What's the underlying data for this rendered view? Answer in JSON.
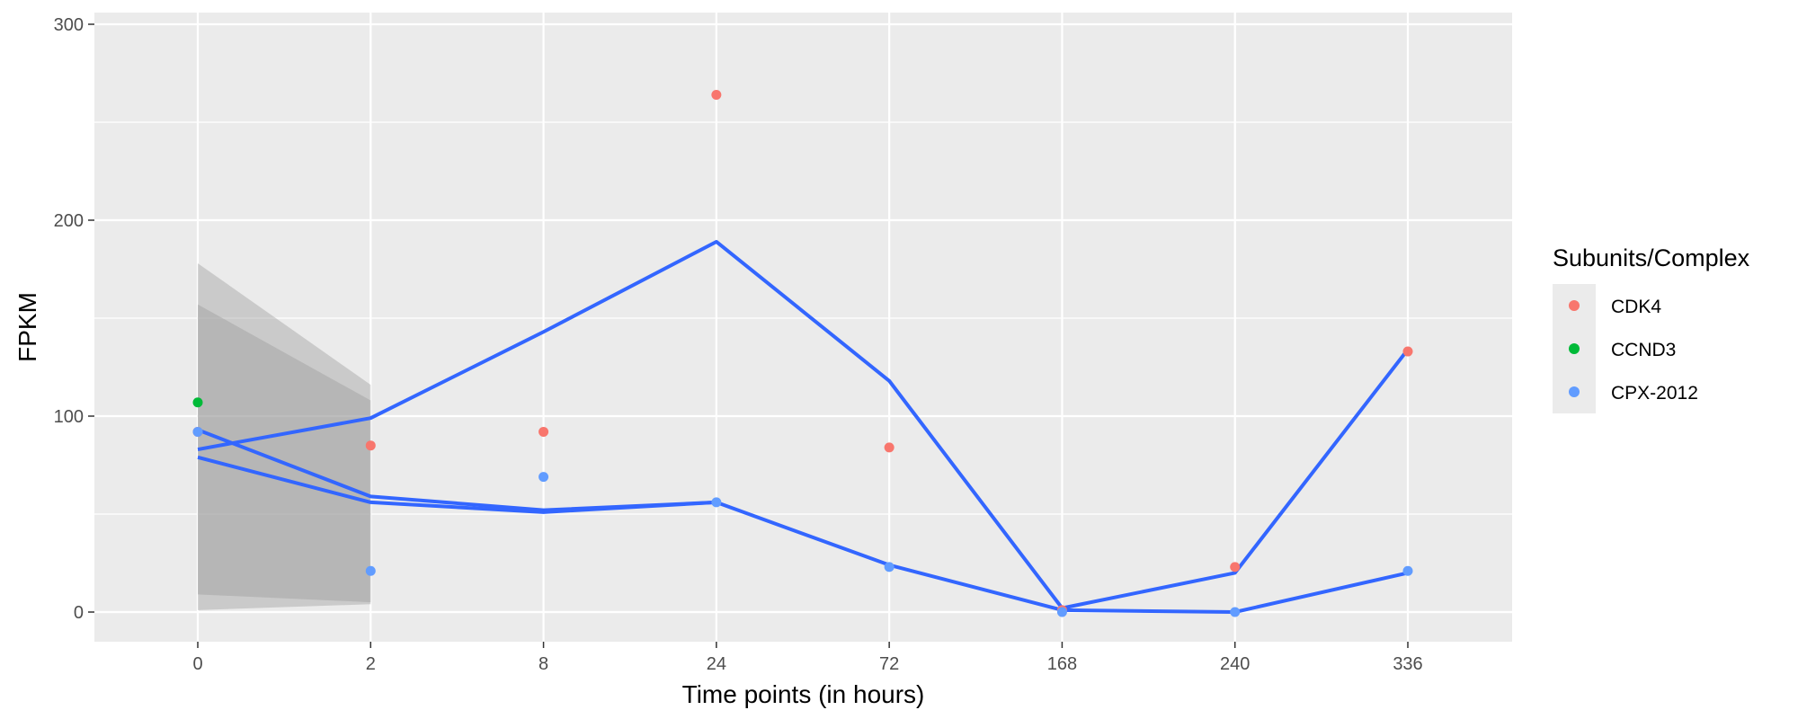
{
  "chart_data": {
    "type": "scatter",
    "title": "",
    "xlabel": "Time points (in hours)",
    "ylabel": "FPKM",
    "categories": [
      "0",
      "2",
      "8",
      "24",
      "72",
      "168",
      "240",
      "336"
    ],
    "ylim": [
      -15,
      300
    ],
    "yticks": [
      0,
      100,
      200,
      300
    ],
    "grid": true,
    "legend": {
      "title": "Subunits/Complex",
      "position": "right",
      "entries": [
        {
          "label": "CDK4",
          "color": "#F8766D"
        },
        {
          "label": "CCND3",
          "color": "#00BA38"
        },
        {
          "label": "CPX-2012",
          "color": "#619CFF"
        }
      ]
    },
    "points": [
      {
        "series": "CDK4",
        "x": "0",
        "y": 92
      },
      {
        "series": "CDK4",
        "x": "2",
        "y": 85
      },
      {
        "series": "CDK4",
        "x": "8",
        "y": 92
      },
      {
        "series": "CDK4",
        "x": "24",
        "y": 264
      },
      {
        "series": "CDK4",
        "x": "72",
        "y": 84
      },
      {
        "series": "CDK4",
        "x": "168",
        "y": 1
      },
      {
        "series": "CDK4",
        "x": "240",
        "y": 23
      },
      {
        "series": "CDK4",
        "x": "336",
        "y": 133
      },
      {
        "series": "CCND3",
        "x": "0",
        "y": 107
      },
      {
        "series": "CPX-2012",
        "x": "0",
        "y": 92
      },
      {
        "series": "CPX-2012",
        "x": "2",
        "y": 21
      },
      {
        "series": "CPX-2012",
        "x": "8",
        "y": 69
      },
      {
        "series": "CPX-2012",
        "x": "24",
        "y": 56
      },
      {
        "series": "CPX-2012",
        "x": "72",
        "y": 23
      },
      {
        "series": "CPX-2012",
        "x": "168",
        "y": 0
      },
      {
        "series": "CPX-2012",
        "x": "240",
        "y": 0
      },
      {
        "series": "CPX-2012",
        "x": "336",
        "y": 21
      }
    ],
    "smooth_lines": [
      {
        "color": "#3366FF",
        "x": [
          "0",
          "2",
          "8",
          "24",
          "72",
          "168",
          "240",
          "336"
        ],
        "y": [
          83,
          99,
          143,
          189,
          118,
          2,
          20,
          134
        ]
      },
      {
        "color": "#3366FF",
        "x": [
          "0",
          "2",
          "8",
          "24",
          "72",
          "168",
          "240",
          "336"
        ],
        "y": [
          93,
          59,
          52,
          56,
          24,
          1,
          0,
          20
        ]
      },
      {
        "color": "#3366FF",
        "x": [
          "0",
          "2",
          "8",
          "24"
        ],
        "y": [
          79,
          56,
          51,
          56
        ]
      }
    ],
    "confidence_bands": [
      {
        "x": [
          "0",
          "2"
        ],
        "upper": [
          178,
          116
        ],
        "lower": [
          1,
          4
        ]
      },
      {
        "x": [
          "0",
          "2"
        ],
        "upper": [
          157,
          108
        ],
        "lower": [
          9,
          5
        ]
      }
    ]
  }
}
